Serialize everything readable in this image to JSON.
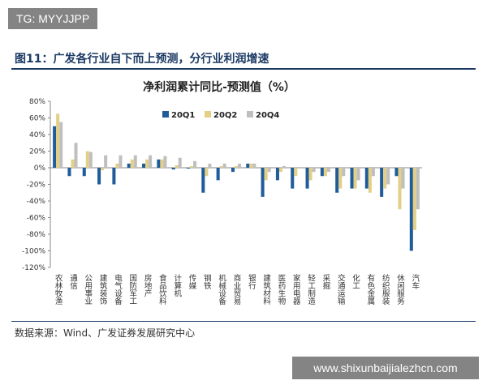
{
  "watermark_top": "TG: MYYJJPP",
  "figure_title": "图11：广发各行业自下而上预测，分行业利润增速",
  "source": "数据来源：Wind、广发证券发展研究中心",
  "watermark_bottom": "www.shixunbaijialezhcn.com",
  "chart_data": {
    "type": "bar",
    "title": "净利润累计同比-预测值（%）",
    "categories": [
      "农林牧渔",
      "通信",
      "公用事业",
      "建筑装饰",
      "电气设备",
      "国防军工",
      "房地产",
      "食品饮料",
      "计算机",
      "传媒",
      "钢铁",
      "机械设备",
      "商业贸易",
      "银行",
      "建筑材料",
      "医药生物",
      "家用电器",
      "轻工制造",
      "采掘",
      "交通运输",
      "化工",
      "有色金属",
      "纺织服装",
      "休闲服务",
      "汽车"
    ],
    "series": [
      {
        "name": "20Q1",
        "color": "#1f5c99",
        "values": [
          50,
          -10,
          -10,
          -20,
          -20,
          5,
          5,
          10,
          -2,
          -1,
          -30,
          -15,
          -5,
          5,
          -35,
          -15,
          -25,
          -25,
          -10,
          -30,
          -25,
          -25,
          -35,
          -10,
          -100
        ]
      },
      {
        "name": "20Q2",
        "color": "#e3cf86",
        "values": [
          65,
          10,
          20,
          -3,
          5,
          10,
          10,
          10,
          3,
          2,
          -10,
          2,
          2,
          5,
          -15,
          -5,
          -10,
          -15,
          -10,
          -25,
          -25,
          -30,
          -25,
          -50,
          -75
        ]
      },
      {
        "name": "20Q4",
        "color": "#bfbfbf",
        "values": [
          55,
          30,
          19,
          15,
          15,
          15,
          15,
          14,
          12,
          8,
          5,
          5,
          5,
          5,
          -5,
          2,
          0,
          -5,
          -5,
          -10,
          -15,
          -10,
          -20,
          -25,
          -50
        ]
      }
    ],
    "ylim": [
      -120,
      80
    ],
    "yticks": [
      {
        "value": 80,
        "label": "80%"
      },
      {
        "value": 60,
        "label": "60%"
      },
      {
        "value": 40,
        "label": "40%"
      },
      {
        "value": 20,
        "label": "20%"
      },
      {
        "value": 0,
        "label": "0%"
      },
      {
        "value": -20,
        "label": "-20%"
      },
      {
        "value": -40,
        "label": "-40%"
      },
      {
        "value": -60,
        "label": "-60%"
      },
      {
        "value": -80,
        "label": "-80%"
      },
      {
        "value": -100,
        "label": "-100%"
      },
      {
        "value": -120,
        "label": "-120%"
      }
    ],
    "legend": "top"
  }
}
